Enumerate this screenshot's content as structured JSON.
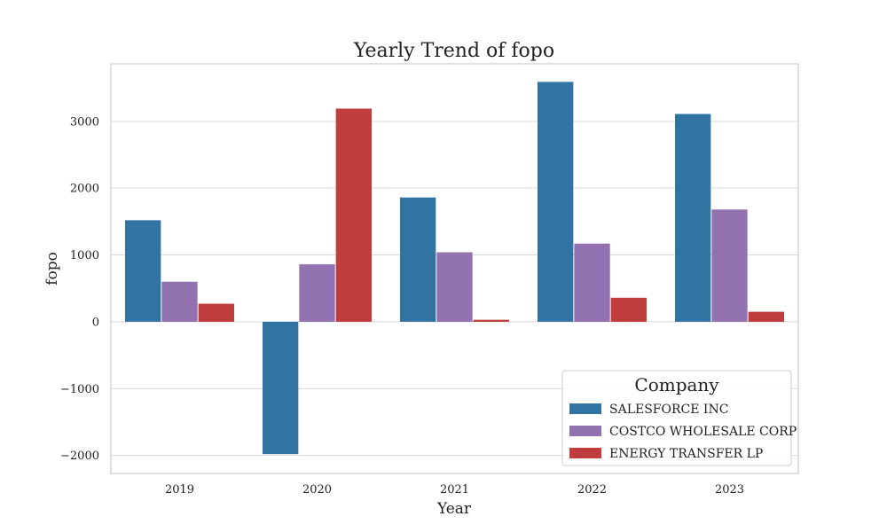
{
  "chart_data": {
    "type": "bar",
    "title": "Yearly Trend of fopo",
    "xlabel": "Year",
    "ylabel": "fopo",
    "categories": [
      "2019",
      "2020",
      "2021",
      "2022",
      "2023"
    ],
    "series": [
      {
        "name": "SALESFORCE INC",
        "color": "#3274a1",
        "values": [
          1520,
          -1980,
          1860,
          3590,
          3110
        ]
      },
      {
        "name": "COSTCO WHOLESALE CORP",
        "color": "#9372b2",
        "values": [
          600,
          860,
          1040,
          1170,
          1680
        ]
      },
      {
        "name": "ENERGY TRANSFER LP",
        "color": "#c03d3e",
        "values": [
          270,
          3190,
          30,
          360,
          150
        ]
      }
    ],
    "ylim": [
      -2270,
      3860
    ],
    "yticks": [
      -2000,
      -1000,
      0,
      1000,
      2000,
      3000
    ],
    "ytick_labels": [
      "−2000",
      "−1000",
      "0",
      "1000",
      "2000",
      "3000"
    ],
    "grid": true,
    "legend": {
      "title": "Company",
      "placement": "lower-right"
    }
  }
}
